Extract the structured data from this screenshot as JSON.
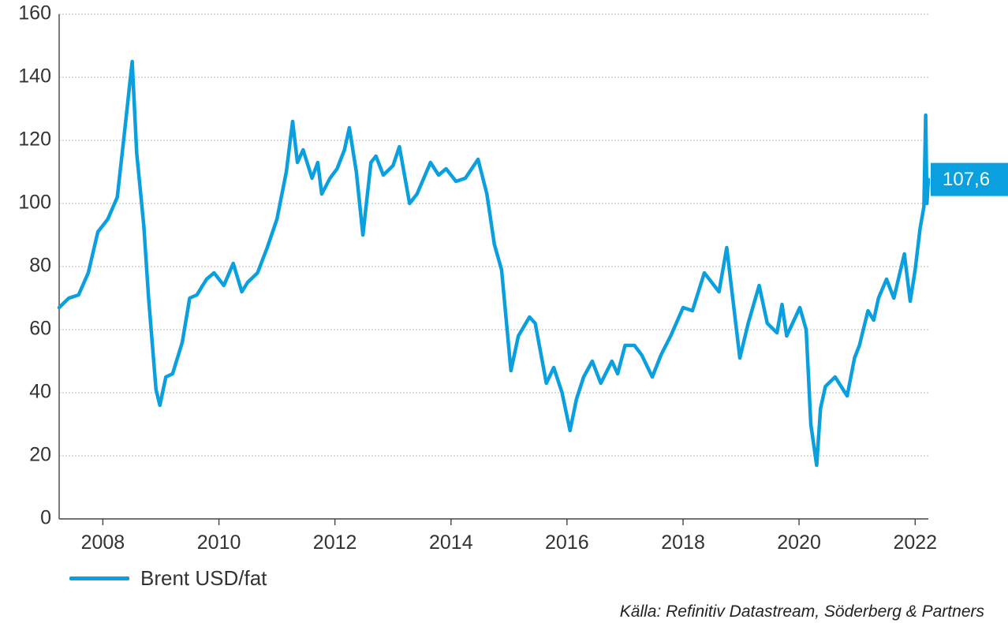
{
  "chart_data": {
    "type": "line",
    "title": "",
    "xlabel": "",
    "ylabel": "",
    "ylim": [
      0,
      160
    ],
    "xlim": [
      "2007-04-01",
      "2022-03-25"
    ],
    "y_ticks": [
      "0",
      "20",
      "40",
      "60",
      "80",
      "100",
      "120",
      "140",
      "160"
    ],
    "x_ticks": [
      "2008",
      "2010",
      "2012",
      "2014",
      "2016",
      "2018",
      "2020",
      "2022"
    ],
    "grid": "horizontal dotted",
    "legend_position": "bottom-left",
    "series": [
      {
        "name": "Brent USD/fat",
        "color": "#0aa0df",
        "x": [
          "2007-04-01",
          "2007-06-01",
          "2007-08-01",
          "2007-10-01",
          "2007-12-01",
          "2008-02-01",
          "2008-04-01",
          "2008-05-15",
          "2008-07-04",
          "2008-08-01",
          "2008-09-15",
          "2008-10-15",
          "2008-12-01",
          "2008-12-25",
          "2009-02-01",
          "2009-03-15",
          "2009-05-15",
          "2009-07-01",
          "2009-08-15",
          "2009-10-15",
          "2009-12-01",
          "2010-02-01",
          "2010-04-01",
          "2010-05-25",
          "2010-07-01",
          "2010-09-01",
          "2010-11-01",
          "2011-01-01",
          "2011-03-01",
          "2011-04-10",
          "2011-05-10",
          "2011-06-15",
          "2011-08-10",
          "2011-09-15",
          "2011-10-10",
          "2011-12-01",
          "2012-01-15",
          "2012-03-01",
          "2012-04-01",
          "2012-05-15",
          "2012-06-25",
          "2012-08-15",
          "2012-09-15",
          "2012-11-01",
          "2013-01-01",
          "2013-02-10",
          "2013-04-15",
          "2013-06-01",
          "2013-08-25",
          "2013-10-15",
          "2013-12-01",
          "2014-02-01",
          "2014-04-01",
          "2014-06-20",
          "2014-08-15",
          "2014-10-01",
          "2014-11-15",
          "2015-01-13",
          "2015-03-01",
          "2015-05-10",
          "2015-06-15",
          "2015-08-24",
          "2015-10-10",
          "2015-12-01",
          "2016-01-20",
          "2016-03-01",
          "2016-04-15",
          "2016-06-08",
          "2016-08-01",
          "2016-10-10",
          "2016-11-15",
          "2017-01-01",
          "2017-03-01",
          "2017-04-15",
          "2017-06-21",
          "2017-08-15",
          "2017-10-15",
          "2018-01-01",
          "2018-03-01",
          "2018-05-15",
          "2018-08-15",
          "2018-10-03",
          "2018-12-24",
          "2019-02-15",
          "2019-04-25",
          "2019-06-15",
          "2019-08-15",
          "2019-09-16",
          "2019-10-15",
          "2020-01-06",
          "2020-02-15",
          "2020-03-15",
          "2020-04-21",
          "2020-05-15",
          "2020-06-15",
          "2020-08-15",
          "2020-10-30",
          "2020-12-15",
          "2021-01-15",
          "2021-03-10",
          "2021-04-15",
          "2021-05-15",
          "2021-07-05",
          "2021-08-20",
          "2021-10-25",
          "2021-12-01",
          "2022-01-01",
          "2022-02-01",
          "2022-02-25",
          "2022-03-08",
          "2022-03-16",
          "2022-03-25"
        ],
        "values": [
          67,
          70,
          71,
          78,
          91,
          95,
          102,
          122,
          145,
          116,
          93,
          70,
          41,
          36,
          45,
          46,
          56,
          70,
          71,
          76,
          78,
          74,
          81,
          72,
          75,
          78,
          86,
          95,
          110,
          126,
          113,
          117,
          108,
          113,
          103,
          108,
          111,
          117,
          124,
          110,
          90,
          113,
          115,
          109,
          112,
          118,
          100,
          103,
          113,
          109,
          111,
          107,
          108,
          114,
          103,
          87,
          79,
          47,
          58,
          64,
          62,
          43,
          48,
          40,
          28,
          38,
          45,
          50,
          43,
          50,
          46,
          55,
          55,
          52,
          45,
          52,
          58,
          67,
          66,
          78,
          72,
          86,
          51,
          62,
          74,
          62,
          59,
          68,
          58,
          67,
          60,
          30,
          17,
          35,
          42,
          45,
          39,
          51,
          55,
          66,
          63,
          70,
          76,
          70,
          84,
          69,
          79,
          92,
          99,
          128,
          100,
          107.6
        ]
      }
    ],
    "callout_label": "107,6",
    "source_note": "Källa: Refinitiv Datastream, Söderberg & Partners"
  }
}
